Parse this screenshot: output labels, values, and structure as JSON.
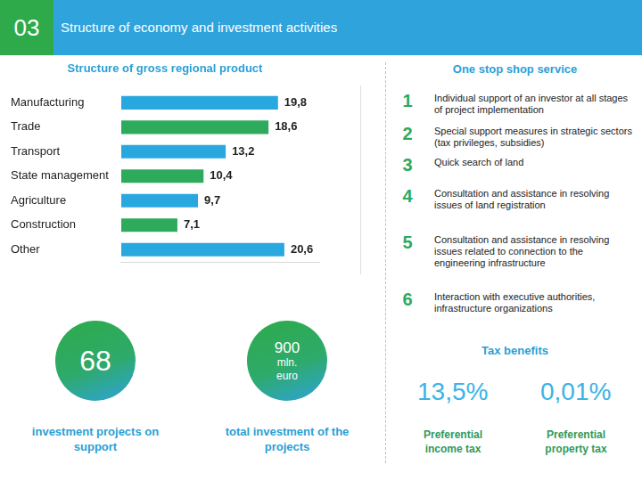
{
  "header": {
    "number": "03",
    "title": "Structure of economy and investment activities"
  },
  "chart_data": {
    "type": "bar",
    "title": "Structure of gross regional product",
    "orientation": "horizontal",
    "categories": [
      "Manufacturing",
      "Trade",
      "Transport",
      "State management",
      "Agriculture",
      "Construction",
      "Other"
    ],
    "values": [
      19.8,
      18.6,
      13.2,
      10.4,
      9.7,
      7.1,
      20.6
    ],
    "value_labels": [
      "19,8",
      "18,6",
      "13,2",
      "10,4",
      "9,7",
      "7,1",
      "20,6"
    ],
    "colors": [
      "#29a8e0",
      "#2eaa5c",
      "#29a8e0",
      "#2eaa5c",
      "#29a8e0",
      "#2eaa5c",
      "#29a8e0"
    ],
    "xlim": [
      0,
      25
    ],
    "xticks": [
      0,
      25
    ],
    "grid": false,
    "data_labels": true,
    "tick_labels": "y"
  },
  "services": {
    "title": "One stop shop service",
    "items": [
      {
        "number": 1,
        "text": "Individual support of an investor at all stages of project implementation"
      },
      {
        "number": 2,
        "text": "Special support measures in strategic sectors (tax privileges, subsidies)"
      },
      {
        "number": 3,
        "text": "Quick search of land"
      },
      {
        "number": 4,
        "text": "Consultation and assistance in resolving issues of land registration"
      },
      {
        "number": 5,
        "text": "Consultation and assistance in resolving issues related to connection to the engineering infrastructure"
      },
      {
        "number": 6,
        "text": "Interaction with executive authorities, infrastructure organizations"
      }
    ]
  },
  "stats": [
    {
      "value": 68,
      "caption": "investment projects on support"
    },
    {
      "value": 900,
      "unit": "mln. euro",
      "caption": "total investment of the projects"
    }
  ],
  "tax_benefits": {
    "title": "Tax benefits",
    "items": [
      {
        "value": "13,5%",
        "caption": "Preferential income tax"
      },
      {
        "value": "0,01%",
        "caption": "Preferential property tax"
      }
    ]
  }
}
